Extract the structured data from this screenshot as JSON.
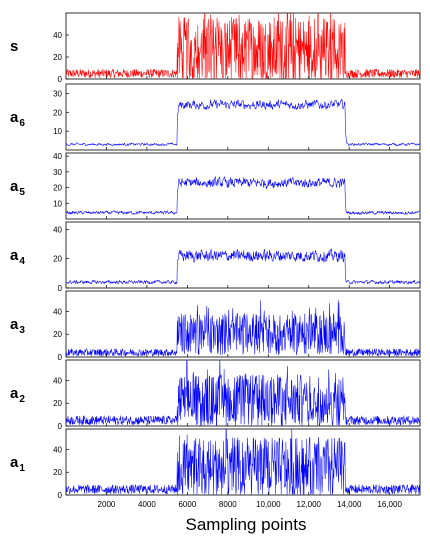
{
  "chart_data": {
    "type": "line",
    "xlabel": "Sampling points",
    "x_range": [
      0,
      17500
    ],
    "x_ticks": [
      {
        "value": 2000,
        "label": "2000"
      },
      {
        "value": 4000,
        "label": "4000"
      },
      {
        "value": 6000,
        "label": "6000"
      },
      {
        "value": 8000,
        "label": "8000"
      },
      {
        "value": 10000,
        "label": "10,000"
      },
      {
        "value": 12000,
        "label": "12,000"
      },
      {
        "value": 14000,
        "label": "14,000"
      },
      {
        "value": 16000,
        "label": "16,000"
      }
    ],
    "segments": {
      "quiet_before_end": 5500,
      "active_start": 5500,
      "active_end": 13800
    },
    "panels": [
      {
        "label": "s",
        "sub": "",
        "color": "#ff0000",
        "ylim": [
          0,
          60
        ],
        "yticks": [
          0,
          20,
          40
        ],
        "quiet_level": 5,
        "active_level": 25,
        "noise": 0.7,
        "raw": true
      },
      {
        "label": "a",
        "sub": "6",
        "color": "#0000ff",
        "ylim": [
          0,
          35
        ],
        "yticks": [
          10,
          20,
          30
        ],
        "quiet_level": 3,
        "active_level": 24,
        "noise": 0.1,
        "raw": false
      },
      {
        "label": "a",
        "sub": "5",
        "color": "#0000ff",
        "ylim": [
          0,
          42
        ],
        "yticks": [
          10,
          20,
          30,
          40
        ],
        "quiet_level": 4,
        "active_level": 23,
        "noise": 0.2,
        "raw": false
      },
      {
        "label": "a",
        "sub": "4",
        "color": "#0000ff",
        "ylim": [
          0,
          45
        ],
        "yticks": [
          0,
          20,
          40
        ],
        "quiet_level": 4,
        "active_level": 22,
        "noise": 0.3,
        "raw": false
      },
      {
        "label": "a",
        "sub": "3",
        "color": "#0000ff",
        "ylim": [
          0,
          58
        ],
        "yticks": [
          0,
          20,
          40
        ],
        "quiet_level": 4,
        "active_level": 20,
        "noise": 0.45,
        "raw": true
      },
      {
        "label": "a",
        "sub": "2",
        "color": "#0000ff",
        "ylim": [
          0,
          58
        ],
        "yticks": [
          0,
          20,
          40
        ],
        "quiet_level": 5,
        "active_level": 22,
        "noise": 0.55,
        "raw": true
      },
      {
        "label": "a",
        "sub": "1",
        "color": "#0000ff",
        "ylim": [
          0,
          58
        ],
        "yticks": [
          0,
          20,
          40
        ],
        "quiet_level": 5,
        "active_level": 23,
        "noise": 0.65,
        "raw": true
      }
    ]
  }
}
